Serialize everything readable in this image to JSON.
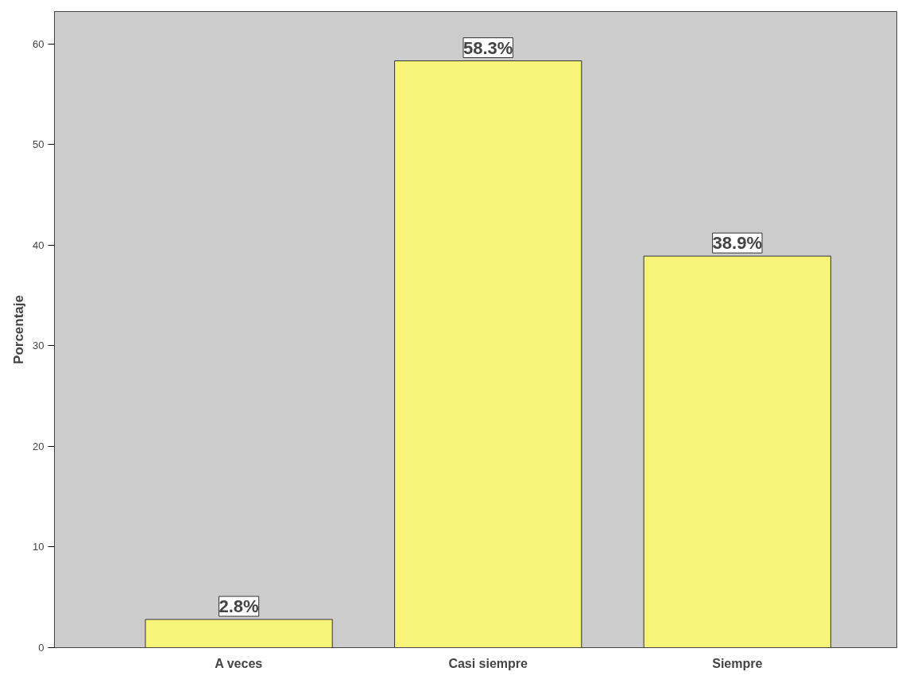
{
  "chart_data": {
    "type": "bar",
    "ylabel": "Porcentaje",
    "categories": [
      "A veces",
      "Casi siempre",
      "Siempre"
    ],
    "values": [
      2.8,
      58.3,
      38.9
    ],
    "color": "#f8f47a",
    "value_labels": [
      "2.8%",
      "58.3%",
      "38.9%"
    ],
    "ylim": [
      0,
      63.2
    ],
    "yticks": [
      0,
      10,
      20,
      30,
      40,
      50,
      60
    ],
    "grid": false
  }
}
